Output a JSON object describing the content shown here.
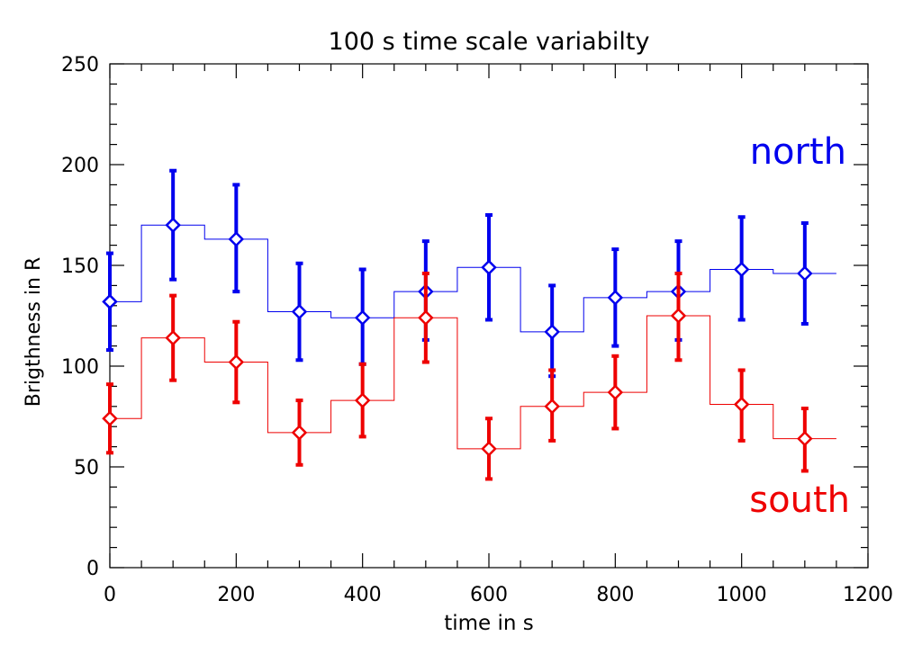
{
  "chart_data": {
    "type": "line",
    "title": "100 s time scale variabilty",
    "xlabel": "time in s",
    "ylabel": "Brigthness in R",
    "xlim": [
      0,
      1200
    ],
    "ylim": [
      0,
      250
    ],
    "xticks": [
      0,
      200,
      400,
      600,
      800,
      1000,
      1200
    ],
    "yticks": [
      0,
      50,
      100,
      150,
      200,
      250
    ],
    "x": [
      0,
      100,
      200,
      300,
      400,
      500,
      600,
      700,
      800,
      900,
      1000,
      1100
    ],
    "series": [
      {
        "name": "north",
        "color": "#0000ee",
        "values": [
          132,
          170,
          163,
          127,
          124,
          137,
          149,
          117,
          134,
          137,
          148,
          146
        ],
        "err_low": [
          108,
          143,
          137,
          103,
          101,
          113,
          123,
          95,
          110,
          113,
          123,
          121
        ],
        "err_high": [
          156,
          197,
          190,
          151,
          148,
          162,
          175,
          140,
          158,
          162,
          174,
          171
        ]
      },
      {
        "name": "south",
        "color": "#ee0000",
        "values": [
          74,
          114,
          102,
          67,
          83,
          124,
          59,
          80,
          87,
          125,
          81,
          64
        ],
        "err_low": [
          57,
          93,
          82,
          51,
          65,
          102,
          44,
          63,
          69,
          103,
          63,
          48
        ],
        "err_high": [
          91,
          135,
          122,
          83,
          101,
          146,
          74,
          98,
          105,
          146,
          98,
          79
        ]
      }
    ],
    "grid": false,
    "legend": "text labels inside plot at right"
  }
}
